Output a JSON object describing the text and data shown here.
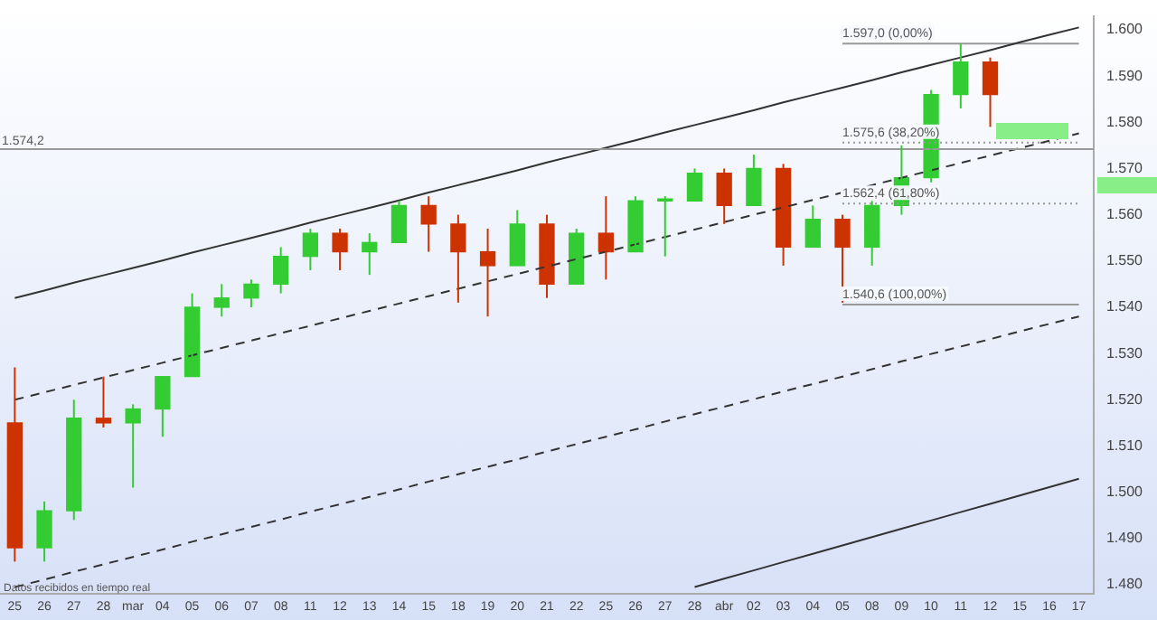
{
  "chart_data": {
    "type": "candlestick",
    "categories": [
      "25",
      "26",
      "27",
      "28",
      "mar",
      "04",
      "05",
      "06",
      "07",
      "08",
      "11",
      "12",
      "13",
      "14",
      "15",
      "18",
      "19",
      "20",
      "21",
      "22",
      "25",
      "26",
      "27",
      "28",
      "abr",
      "02",
      "03",
      "04",
      "05",
      "08",
      "09",
      "10",
      "11",
      "12",
      "15",
      "16",
      "17"
    ],
    "ohlc": [
      [
        1515,
        1527,
        1485,
        1488
      ],
      [
        1488,
        1498,
        1485,
        1496
      ],
      [
        1496,
        1520,
        1494,
        1516
      ],
      [
        1516,
        1525,
        1514,
        1515
      ],
      [
        1515,
        1519,
        1501,
        1518
      ],
      [
        1518,
        1525,
        1512,
        1525
      ],
      [
        1525,
        1543,
        1525,
        1540
      ],
      [
        1540,
        1545,
        1538,
        1542
      ],
      [
        1542,
        1546,
        1540,
        1545
      ],
      [
        1545,
        1553,
        1543,
        1551
      ],
      [
        1551,
        1557,
        1548,
        1556
      ],
      [
        1556,
        1557,
        1548,
        1552
      ],
      [
        1552,
        1556,
        1547,
        1554
      ],
      [
        1554,
        1563,
        1554,
        1562
      ],
      [
        1562,
        1564,
        1552,
        1558
      ],
      [
        1558,
        1560,
        1541,
        1552
      ],
      [
        1552,
        1557,
        1538,
        1549
      ],
      [
        1549,
        1561,
        1549,
        1558
      ],
      [
        1558,
        1560,
        1542,
        1545
      ],
      [
        1545,
        1557,
        1545,
        1556
      ],
      [
        1556,
        1564,
        1546,
        1552
      ],
      [
        1552,
        1564,
        1552,
        1563
      ],
      [
        1563,
        1564,
        1551,
        1563
      ],
      [
        1563,
        1570,
        1563,
        1569
      ],
      [
        1569,
        1570,
        1558,
        1562
      ],
      [
        1562,
        1573,
        1562,
        1570
      ],
      [
        1570,
        1571,
        1549,
        1553
      ],
      [
        1553,
        1562,
        1553,
        1559
      ],
      [
        1559,
        1560,
        1541,
        1553
      ],
      [
        1553,
        1563,
        1549,
        1562
      ],
      [
        1562,
        1575,
        1560,
        1568
      ],
      [
        1568,
        1587,
        1567,
        1586
      ],
      [
        1586,
        1597,
        1583,
        1593
      ],
      [
        1593,
        1594,
        1579,
        1586
      ],
      null,
      null,
      null
    ],
    "colors": [
      "#cc3300",
      "#33cc33",
      "#33cc33",
      "#cc3300",
      "#33cc33",
      "#33cc33",
      "#33cc33",
      "#33cc33",
      "#33cc33",
      "#33cc33",
      "#33cc33",
      "#cc3300",
      "#33cc33",
      "#33cc33",
      "#cc3300",
      "#cc3300",
      "#cc3300",
      "#33cc33",
      "#cc3300",
      "#33cc33",
      "#cc3300",
      "#33cc33",
      "#33cc33",
      "#33cc33",
      "#cc3300",
      "#33cc33",
      "#cc3300",
      "#33cc33",
      "#cc3300",
      "#33cc33",
      "#33cc33",
      "#33cc33",
      "#33cc33",
      "#cc3300",
      null,
      null,
      null
    ],
    "series": [
      {
        "type": "line",
        "color": "#333333",
        "line_style": "solid",
        "values": [
          1542,
          1543.6,
          1545.3,
          1546.9,
          1548.5,
          1550.1,
          1551.8,
          1553.4,
          1555,
          1556.6,
          1558.3,
          1559.9,
          1561.5,
          1563.1,
          1564.8,
          1566.4,
          1568,
          1569.6,
          1571.3,
          1572.9,
          1574.5,
          1576.1,
          1577.8,
          1579.4,
          1581,
          1582.6,
          1584.3,
          1585.9,
          1587.5,
          1589.1,
          1590.8,
          1592.4,
          1594,
          1595.6,
          1597.3,
          1598.9,
          1600.5
        ]
      },
      {
        "type": "line",
        "color": "#333333",
        "line_style": "dashed",
        "values": [
          1520,
          1521.6,
          1523.2,
          1524.8,
          1526.4,
          1528,
          1529.6,
          1531.2,
          1532.8,
          1534.4,
          1536,
          1537.6,
          1539.2,
          1540.8,
          1542.4,
          1544,
          1545.6,
          1547.2,
          1548.8,
          1550.4,
          1552,
          1553.6,
          1555.2,
          1556.8,
          1558.4,
          1560,
          1561.6,
          1563.2,
          1564.8,
          1566.4,
          1568,
          1569.6,
          1571.2,
          1572.8,
          1574.4,
          1576,
          1577.6
        ]
      },
      {
        "type": "line",
        "color": "#333333",
        "line_style": "dashed",
        "values": [
          1479.5,
          1481.1,
          1482.8,
          1484.4,
          1486,
          1487.6,
          1489.3,
          1490.9,
          1492.5,
          1494.1,
          1495.8,
          1497.4,
          1499,
          1500.6,
          1502.3,
          1503.9,
          1505.5,
          1507.1,
          1508.8,
          1510.4,
          1512,
          1513.6,
          1515.3,
          1516.9,
          1518.5,
          1520.1,
          1521.8,
          1523.4,
          1525,
          1526.6,
          1528.3,
          1529.9,
          1531.5,
          1533.1,
          1534.8,
          1536.4,
          1538
        ]
      },
      {
        "type": "line",
        "color": "#333333",
        "line_style": "solid",
        "values": [
          null,
          null,
          null,
          null,
          null,
          null,
          null,
          null,
          null,
          null,
          null,
          null,
          null,
          null,
          null,
          null,
          null,
          null,
          null,
          null,
          null,
          null,
          null,
          1479.5,
          1481.3,
          1483.1,
          1484.9,
          1486.7,
          1488.5,
          1490.3,
          1492.1,
          1493.9,
          1495.7,
          1497.5,
          1499.3,
          1501.1,
          1502.9
        ]
      },
      {
        "type": "line",
        "color": "#999999",
        "line_style": "solid",
        "values": [
          null,
          null,
          null,
          null,
          null,
          null,
          null,
          null,
          null,
          null,
          null,
          null,
          null,
          null,
          null,
          null,
          null,
          null,
          null,
          null,
          null,
          null,
          null,
          null,
          null,
          null,
          null,
          null,
          1597,
          1597,
          1597,
          1597,
          1597,
          1597,
          1597,
          1597,
          1597
        ]
      },
      {
        "type": "line",
        "color": "#999999",
        "line_style": "dotted",
        "values": [
          null,
          null,
          null,
          null,
          null,
          null,
          null,
          null,
          null,
          null,
          null,
          null,
          null,
          null,
          null,
          null,
          null,
          null,
          null,
          null,
          null,
          null,
          null,
          null,
          null,
          null,
          null,
          null,
          1575.6,
          1575.6,
          1575.6,
          1575.6,
          1575.6,
          1575.6,
          1575.6,
          1575.6,
          1575.6
        ]
      },
      {
        "type": "line",
        "color": "#999999",
        "line_style": "dotted",
        "values": [
          null,
          null,
          null,
          null,
          null,
          null,
          null,
          null,
          null,
          null,
          null,
          null,
          null,
          null,
          null,
          null,
          null,
          null,
          null,
          null,
          null,
          null,
          null,
          null,
          null,
          null,
          null,
          null,
          1562.4,
          1562.4,
          1562.4,
          1562.4,
          1562.4,
          1562.4,
          1562.4,
          1562.4,
          1562.4
        ]
      },
      {
        "type": "line",
        "color": "#999999",
        "line_style": "solid",
        "values": [
          null,
          null,
          null,
          null,
          null,
          null,
          null,
          null,
          null,
          null,
          null,
          null,
          null,
          null,
          null,
          null,
          null,
          null,
          null,
          null,
          null,
          null,
          null,
          null,
          null,
          null,
          null,
          null,
          1540.6,
          1540.6,
          1540.6,
          1540.6,
          1540.6,
          1540.6,
          1540.6,
          1540.6,
          1540.6
        ]
      }
    ],
    "ref_lines": [
      {
        "axis": "y",
        "value": 1574.2,
        "label": "1.574,2",
        "color": "#999999"
      }
    ],
    "annotations": [
      {
        "text": "1.597,0 (0,00%)",
        "y": 1597
      },
      {
        "text": "1.575,6 (38,20%)",
        "y": 1575.6
      },
      {
        "text": "1.562,4 (61,80%)",
        "y": 1562.4
      },
      {
        "text": "1.540,6 (100,00%)",
        "y": 1540.6
      },
      "Datos recibidos en tiempo real"
    ],
    "ylim": [
      1478,
      1603
    ],
    "yticks": [
      {
        "value": 1480,
        "label": "1.480"
      },
      {
        "value": 1490,
        "label": "1.490"
      },
      {
        "value": 1500,
        "label": "1.500"
      },
      {
        "value": 1510,
        "label": "1.510"
      },
      {
        "value": 1520,
        "label": "1.520"
      },
      {
        "value": 1530,
        "label": "1.530"
      },
      {
        "value": 1540,
        "label": "1.540"
      },
      {
        "value": 1550,
        "label": "1.550"
      },
      {
        "value": 1560,
        "label": "1.560"
      },
      {
        "value": 1570,
        "label": "1.570"
      },
      {
        "value": 1580,
        "label": "1.580"
      },
      {
        "value": 1590,
        "label": "1.590"
      },
      {
        "value": 1600,
        "label": "1.600"
      }
    ],
    "legend": false
  }
}
